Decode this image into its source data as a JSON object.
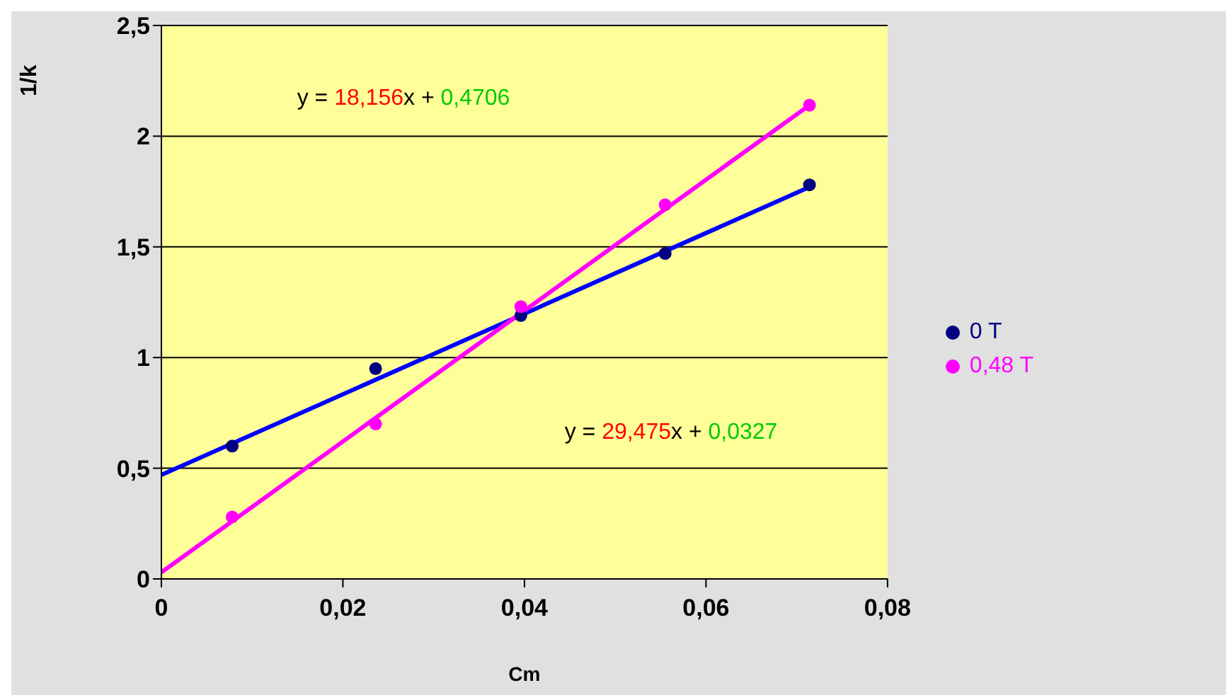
{
  "chart_data": {
    "type": "scatter",
    "xlabel": "Cm",
    "ylabel": "1/k",
    "xlim": [
      0,
      0.08
    ],
    "xticks": [
      {
        "value": 0,
        "label": "0"
      },
      {
        "value": 0.02,
        "label": "0,02"
      },
      {
        "value": 0.04,
        "label": "0,04"
      },
      {
        "value": 0.06,
        "label": "0,06"
      },
      {
        "value": 0.08,
        "label": "0,08"
      }
    ],
    "ylim": [
      0,
      2.5
    ],
    "yticks": [
      {
        "value": 0,
        "label": "0"
      },
      {
        "value": 0.5,
        "label": "0,5"
      },
      {
        "value": 1,
        "label": "1"
      },
      {
        "value": 1.5,
        "label": "1,5"
      },
      {
        "value": 2,
        "label": "2"
      },
      {
        "value": 2.5,
        "label": "2,5"
      }
    ],
    "grid": "y",
    "legend": "right",
    "series": [
      {
        "name": "0 T",
        "marker": "circle",
        "color": "#000080",
        "x": [
          0.0078,
          0.0236,
          0.0396,
          0.0555,
          0.0714
        ],
        "values": [
          0.6,
          0.95,
          1.19,
          1.47,
          1.78
        ]
      },
      {
        "name": "0,48 T",
        "marker": "circle",
        "color": "#ff00ff",
        "x": [
          0.0078,
          0.0236,
          0.0396,
          0.0555,
          0.0714
        ],
        "values": [
          0.28,
          0.7,
          1.23,
          1.69,
          2.14
        ]
      },
      {
        "type": "line",
        "marker": "none",
        "color": "#0000ff",
        "x": [
          0,
          0.0714
        ],
        "values": [
          0.47,
          1.77
        ]
      },
      {
        "type": "line",
        "marker": "none",
        "color": "#ff00ff",
        "x": [
          0,
          0.0714
        ],
        "values": [
          0.03,
          2.14
        ]
      }
    ],
    "annotations": [
      "y = 18,156x + 0,4706",
      "y = 29,475x + 0,0327"
    ]
  }
}
